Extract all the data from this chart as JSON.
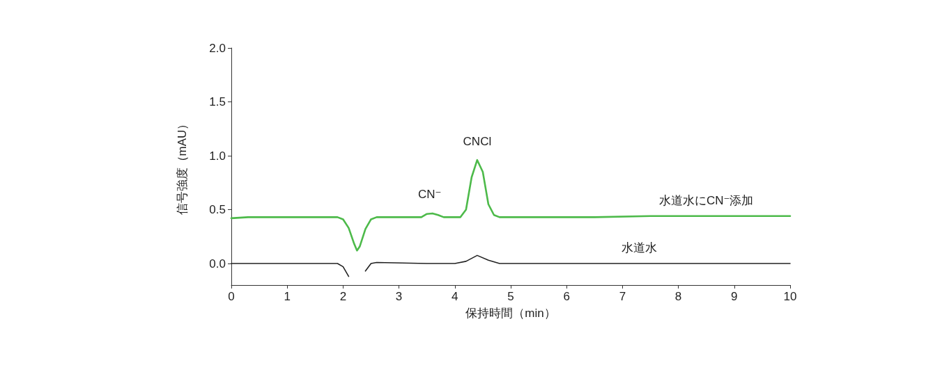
{
  "chart_data": {
    "type": "line",
    "xlabel": "保持時間（min）",
    "ylabel": "信号強度（mAU）",
    "xlim": [
      0,
      10
    ],
    "xticks": [
      0,
      1,
      2,
      3,
      4,
      5,
      6,
      7,
      8,
      9,
      10
    ],
    "ylim": [
      -0.2,
      2.0
    ],
    "yticks": [
      {
        "value": 0,
        "label": "0.0"
      },
      {
        "value": 0.5,
        "label": "0.5"
      },
      {
        "value": 1,
        "label": "1.0"
      },
      {
        "value": 1.5,
        "label": "1.5"
      },
      {
        "value": 2,
        "label": "2.0"
      }
    ],
    "grid": false,
    "legend": false,
    "marker": "none",
    "line_style": "solid",
    "annotations": [
      {
        "text": "CN⁻",
        "x": 3.55,
        "y": 0.47
      },
      {
        "text": "CNCl",
        "x": 4.4,
        "y": 0.96
      }
    ],
    "series": [
      {
        "name": "水道水にCN⁻添加",
        "color": "#4dba4a",
        "x": [
          0,
          0.3,
          0.6,
          1.0,
          1.5,
          1.9,
          2.0,
          2.1,
          2.2,
          2.25,
          2.3,
          2.4,
          2.5,
          2.6,
          3.0,
          3.4,
          3.5,
          3.6,
          3.7,
          3.8,
          4.1,
          4.2,
          4.3,
          4.4,
          4.5,
          4.6,
          4.7,
          4.8,
          5.5,
          6.5,
          7.5,
          8.0,
          8.5,
          9.5,
          10
        ],
        "values": [
          0.42,
          0.43,
          0.43,
          0.43,
          0.43,
          0.43,
          0.41,
          0.33,
          0.18,
          0.12,
          0.16,
          0.32,
          0.41,
          0.43,
          0.43,
          0.43,
          0.46,
          0.465,
          0.45,
          0.43,
          0.43,
          0.5,
          0.8,
          0.96,
          0.85,
          0.55,
          0.45,
          0.43,
          0.43,
          0.43,
          0.44,
          0.44,
          0.44,
          0.44,
          0.44
        ]
      },
      {
        "name": "水道水",
        "color": "#222222",
        "x": [
          0,
          1,
          1.9,
          2.0,
          2.1,
          2.15,
          2.22,
          2.3,
          2.4,
          2.5,
          2.6,
          3.5,
          4.0,
          4.2,
          4.4,
          4.6,
          4.8,
          6,
          7.3,
          8,
          9.5,
          10
        ],
        "values": [
          0,
          0,
          0,
          -0.03,
          -0.12,
          null,
          null,
          null,
          -0.07,
          0,
          0.01,
          0,
          0,
          0.02,
          0.075,
          0.03,
          0,
          0,
          0,
          0,
          0,
          0
        ]
      }
    ]
  }
}
